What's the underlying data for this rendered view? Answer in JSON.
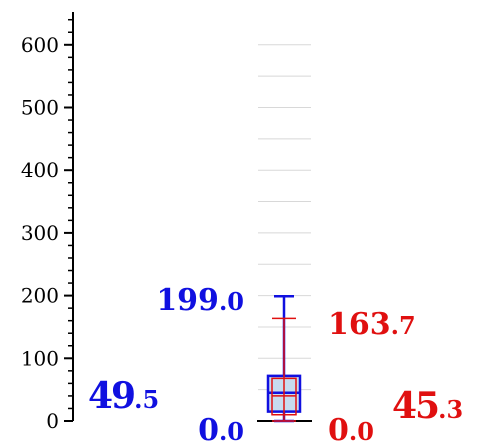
{
  "chart_data": {
    "type": "box",
    "title": "",
    "xlabel": "",
    "ylabel": "",
    "ylim": [
      0,
      640
    ],
    "yticks": [
      "0",
      "100",
      "200",
      "300",
      "400",
      "500",
      "600"
    ],
    "grid": true,
    "series": [
      {
        "color": "#1010e0",
        "min": 0.0,
        "q1": 15,
        "median": 45,
        "q3": 72,
        "max": 199.0,
        "mean": 49.5,
        "labels": {
          "max": "199.0",
          "min": "0.0",
          "mean_int": "49",
          "mean_dec": ".5"
        }
      },
      {
        "color": "#e01010",
        "min": 0.0,
        "q1": 10,
        "median": 40,
        "q3": 68,
        "max": 163.7,
        "mean": 45.3,
        "labels": {
          "max": "163.7",
          "min": "0.0",
          "mean_int": "45",
          "mean_dec": ".3"
        }
      }
    ]
  }
}
